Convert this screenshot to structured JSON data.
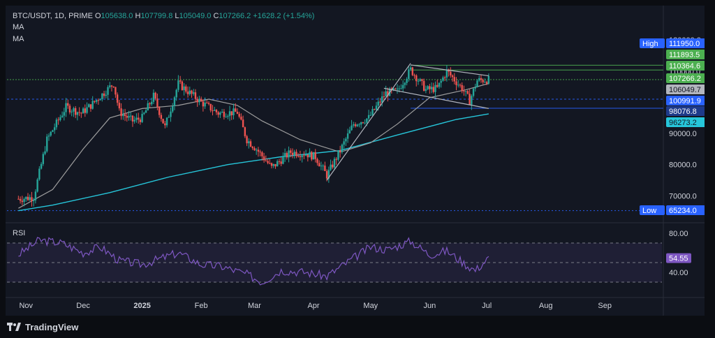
{
  "header": {
    "symbol": "BTC/USDT, 1D, PRIME",
    "o_label": "O",
    "o_value": "105638.0",
    "h_label": "H",
    "h_value": "107799.8",
    "l_label": "L",
    "l_value": "105049.0",
    "c_label": "C",
    "c_value": "107266.2",
    "change": "+1628.2 (+1.54%)",
    "ma1": "MA",
    "ma2": "MA"
  },
  "rsi_panel": {
    "title": "RSI",
    "value_badge": "54.55",
    "ticks": [
      "80.00",
      "40.00"
    ]
  },
  "footer": {
    "brand": "TradingView"
  },
  "colors": {
    "up": "#26a69a",
    "down": "#ef5350",
    "background": "#131722",
    "ma_short": "#9e9e9e",
    "ma_long": "#26c6da",
    "rsi": "#7e57c2",
    "high_badge": "#2962ff",
    "green_badge": "#4caf50"
  },
  "chart_data": [
    {
      "type": "candlestick",
      "title": "BTC/USDT, 1D, PRIME",
      "x_ticks": [
        "Nov",
        "Dec",
        "2025",
        "Feb",
        "Mar",
        "Apr",
        "May",
        "Jun",
        "Jul",
        "Aug",
        "Sep"
      ],
      "y_ticks": [
        120000,
        110000,
        100000,
        90000,
        80000,
        70000
      ],
      "y_tick_labels": [
        "120000.0",
        "110000.0",
        "100000.0",
        "90000.0",
        "80000.0",
        "70000.0"
      ],
      "ylim": [
        62000,
        120500
      ],
      "price_badges": [
        {
          "label": "High",
          "value": "111950.0",
          "style": "blue"
        },
        {
          "label": "",
          "value": "111893.5",
          "style": "green"
        },
        {
          "label": "",
          "value": "110364.6",
          "style": "green"
        },
        {
          "label": "",
          "value": "107266.2",
          "style": "green"
        },
        {
          "label": "",
          "value": "106049.7",
          "style": "gray"
        },
        {
          "label": "",
          "value": "100991.9",
          "style": "blue"
        },
        {
          "label": "",
          "value": "98076.8",
          "style": "navy"
        },
        {
          "label": "",
          "value": "96273.2",
          "style": "teal"
        },
        {
          "label": "Low",
          "value": "65234.0",
          "style": "blue"
        }
      ],
      "close_path": [
        [
          "2024-10-28",
          69000
        ],
        [
          "2024-11-05",
          69500
        ],
        [
          "2024-11-12",
          88000
        ],
        [
          "2024-11-22",
          98500
        ],
        [
          "2024-11-30",
          96500
        ],
        [
          "2024-12-05",
          99000
        ],
        [
          "2024-12-17",
          106000
        ],
        [
          "2024-12-20",
          97000
        ],
        [
          "2024-12-27",
          94000
        ],
        [
          "2025-01-01",
          95000
        ],
        [
          "2025-01-07",
          102000
        ],
        [
          "2025-01-13",
          92000
        ],
        [
          "2025-01-20",
          106000
        ],
        [
          "2025-01-23",
          104500
        ],
        [
          "2025-02-01",
          100000
        ],
        [
          "2025-02-10",
          96500
        ],
        [
          "2025-02-20",
          96800
        ],
        [
          "2025-02-25",
          88000
        ],
        [
          "2025-03-02",
          85000
        ],
        [
          "2025-03-10",
          79000
        ],
        [
          "2025-03-20",
          84000
        ],
        [
          "2025-03-28",
          83500
        ],
        [
          "2025-04-02",
          82500
        ],
        [
          "2025-04-08",
          76500
        ],
        [
          "2025-04-15",
          84500
        ],
        [
          "2025-04-22",
          93000
        ],
        [
          "2025-04-30",
          95000
        ],
        [
          "2025-05-09",
          103000
        ],
        [
          "2025-05-15",
          103500
        ],
        [
          "2025-05-22",
          110500
        ],
        [
          "2025-05-30",
          104000
        ],
        [
          "2025-06-05",
          104500
        ],
        [
          "2025-06-10",
          110000
        ],
        [
          "2025-06-18",
          104500
        ],
        [
          "2025-06-22",
          100500
        ],
        [
          "2025-06-26",
          107000
        ],
        [
          "2025-07-02",
          107266
        ]
      ],
      "ma_short_path": [
        [
          "2024-10-28",
          66000
        ],
        [
          "2024-11-15",
          72000
        ],
        [
          "2024-12-01",
          85000
        ],
        [
          "2024-12-15",
          95000
        ],
        [
          "2025-01-01",
          98000
        ],
        [
          "2025-01-20",
          99000
        ],
        [
          "2025-02-05",
          101000
        ],
        [
          "2025-02-20",
          99000
        ],
        [
          "2025-03-05",
          94000
        ],
        [
          "2025-03-25",
          88000
        ],
        [
          "2025-04-15",
          84000
        ],
        [
          "2025-05-01",
          87000
        ],
        [
          "2025-05-15",
          93000
        ],
        [
          "2025-06-01",
          101500
        ],
        [
          "2025-06-20",
          104000
        ],
        [
          "2025-07-02",
          106049
        ]
      ],
      "ma_long_path": [
        [
          "2024-10-28",
          65200
        ],
        [
          "2024-11-15",
          67000
        ],
        [
          "2024-12-15",
          71000
        ],
        [
          "2025-01-15",
          76000
        ],
        [
          "2025-02-15",
          80000
        ],
        [
          "2025-03-15",
          82500
        ],
        [
          "2025-04-15",
          84500
        ],
        [
          "2025-05-15",
          89500
        ],
        [
          "2025-06-15",
          94500
        ],
        [
          "2025-07-02",
          96273
        ]
      ],
      "trend_lines": [
        {
          "from": [
            "2025-04-08",
            75000
          ],
          "to": [
            "2025-05-22",
            112500
          ]
        },
        {
          "from": [
            "2025-05-22",
            112000
          ],
          "to": [
            "2025-07-02",
            108500
          ]
        },
        {
          "from": [
            "2025-05-08",
            104500
          ],
          "to": [
            "2025-07-02",
            98000
          ]
        }
      ],
      "horizontal_levels": [
        111893.5,
        110364.6,
        107266.2,
        100991.9,
        98076.8,
        65234.0
      ]
    },
    {
      "type": "line",
      "title": "RSI",
      "ylim": [
        20,
        90
      ],
      "bands": [
        70,
        50,
        30
      ],
      "y_ticks": [
        80,
        40
      ],
      "last_value": 54.55,
      "values_path": [
        [
          "2024-10-28",
          58
        ],
        [
          "2024-11-08",
          73
        ],
        [
          "2024-11-20",
          70
        ],
        [
          "2024-12-01",
          60
        ],
        [
          "2024-12-10",
          66
        ],
        [
          "2024-12-20",
          52
        ],
        [
          "2025-01-01",
          48
        ],
        [
          "2025-01-12",
          55
        ],
        [
          "2025-01-20",
          60
        ],
        [
          "2025-02-01",
          48
        ],
        [
          "2025-02-12",
          46
        ],
        [
          "2025-02-25",
          38
        ],
        [
          "2025-03-05",
          30
        ],
        [
          "2025-03-15",
          42
        ],
        [
          "2025-03-28",
          40
        ],
        [
          "2025-04-08",
          36
        ],
        [
          "2025-04-20",
          52
        ],
        [
          "2025-05-01",
          66
        ],
        [
          "2025-05-10",
          63
        ],
        [
          "2025-05-22",
          72
        ],
        [
          "2025-06-01",
          58
        ],
        [
          "2025-06-10",
          62
        ],
        [
          "2025-06-20",
          48
        ],
        [
          "2025-06-25",
          42
        ],
        [
          "2025-07-02",
          54.55
        ]
      ]
    }
  ]
}
